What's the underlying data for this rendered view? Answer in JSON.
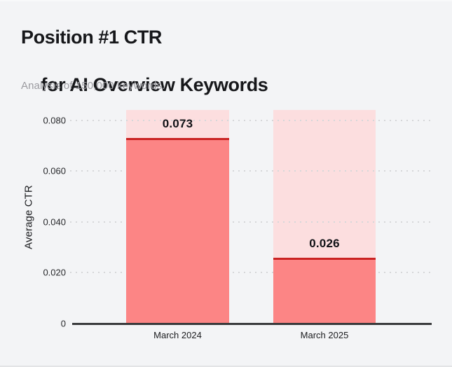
{
  "header": {
    "title_line1": "Position #1 CTR",
    "title_line2": "for AI Overview Keywords",
    "subtitle": "Analysis of 150,000 keywords."
  },
  "chart_data": {
    "type": "bar",
    "title": "Position #1 CTR for AI Overview Keywords",
    "subtitle": "Analysis of 150,000 keywords.",
    "categories": [
      "March 2024",
      "March 2025"
    ],
    "values": [
      0.073,
      0.026
    ],
    "value_labels": [
      "0.073",
      "0.026"
    ],
    "xlabel": "",
    "ylabel": "Average CTR",
    "ylim": [
      0,
      0.084
    ],
    "yticks": [
      0,
      0.02,
      0.04,
      0.06,
      0.08
    ],
    "ytick_labels": [
      "0",
      "0.020",
      "0.040",
      "0.060",
      "0.080"
    ],
    "grid": "horizontal-dotted",
    "legend": "none",
    "colors": {
      "background": "#f3f4f6",
      "bar_fill": "#fc8585",
      "bar_track_background": "#fcdedf",
      "bar_top_line": "#ca2323",
      "axis_line": "#38393b",
      "gridline": "#d6d7d9",
      "title_text": "#16171a",
      "subtitle_text": "#9b9ba0",
      "tick_text": "#27282b"
    }
  }
}
